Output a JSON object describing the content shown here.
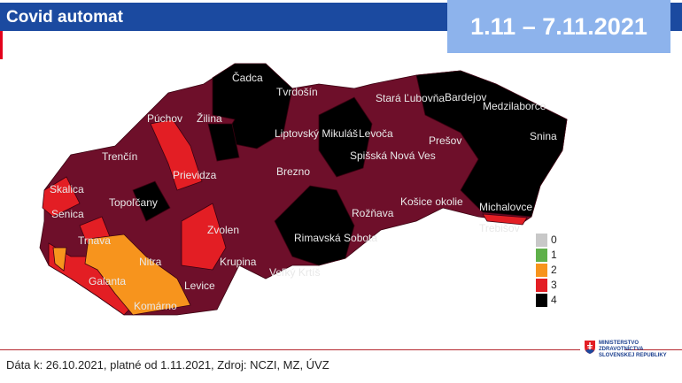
{
  "header": {
    "title": "Covid automat",
    "date_range": "1.11 – 7.11.2021"
  },
  "legend": {
    "items": [
      {
        "label": "0",
        "color": "#c8c8c8"
      },
      {
        "label": "1",
        "color": "#5fb04a"
      },
      {
        "label": "2",
        "color": "#f7941d"
      },
      {
        "label": "3",
        "color": "#e31e24"
      },
      {
        "label": "4",
        "color": "#000000"
      }
    ]
  },
  "map": {
    "base_color": "#6e0f2a",
    "districts": [
      "Čadca",
      "Tvrdošín",
      "Stará Ľubovňa",
      "Bardejov",
      "Medzilaborce",
      "Púchov",
      "Žilina",
      "Liptovský Mikuláš",
      "Levoča",
      "Prešov",
      "Snina",
      "Trenčín",
      "Prievidza",
      "Brezno",
      "Spišská Nová Ves",
      "Skalica",
      "Senica",
      "Topoľčany",
      "Rožňava",
      "Košice okolie",
      "Michalovce",
      "Trnava",
      "Zvolen",
      "Rimavská Sobota",
      "Trebišov",
      "Nitra",
      "Krupina",
      "Galanta",
      "Levice",
      "Veľký Krtíš",
      "Komárno"
    ]
  },
  "footer": {
    "source": "Dáta k: 26.10.2021, platné od 1.11.2021, Zdroj: NCZI, MZ, ÚVZ"
  },
  "logo": {
    "line1": "MINISTERSTVO",
    "line2": "ZDRAVOTNÍCTVA",
    "line3": "SLOVENSKEJ REPUBLIKY"
  }
}
